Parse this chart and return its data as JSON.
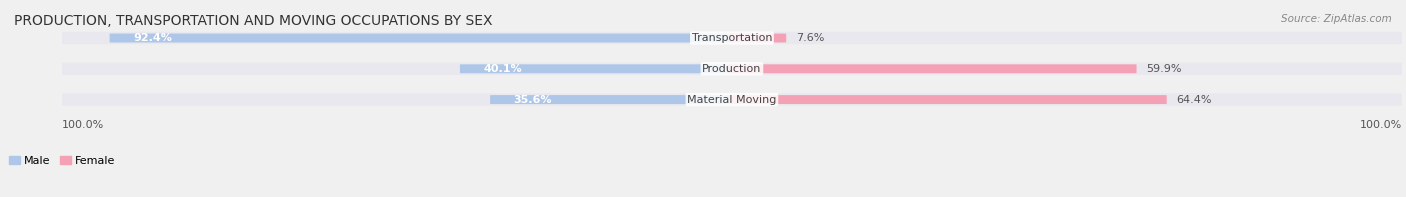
{
  "title": "PRODUCTION, TRANSPORTATION AND MOVING OCCUPATIONS BY SEX",
  "source": "Source: ZipAtlas.com",
  "categories": [
    "Transportation",
    "Production",
    "Material Moving"
  ],
  "male_values": [
    92.4,
    40.1,
    35.6
  ],
  "female_values": [
    7.6,
    59.9,
    64.4
  ],
  "male_color": "#aec6e8",
  "female_color": "#f4a0b5",
  "male_label": "Male",
  "female_label": "Female",
  "bg_color": "#f0f0f0",
  "bar_bg_color": "#e8e8ee",
  "title_fontsize": 10,
  "source_fontsize": 7.5,
  "label_fontsize": 8,
  "pct_fontsize": 8,
  "axis_label_left": "100.0%",
  "axis_label_right": "100.0%"
}
